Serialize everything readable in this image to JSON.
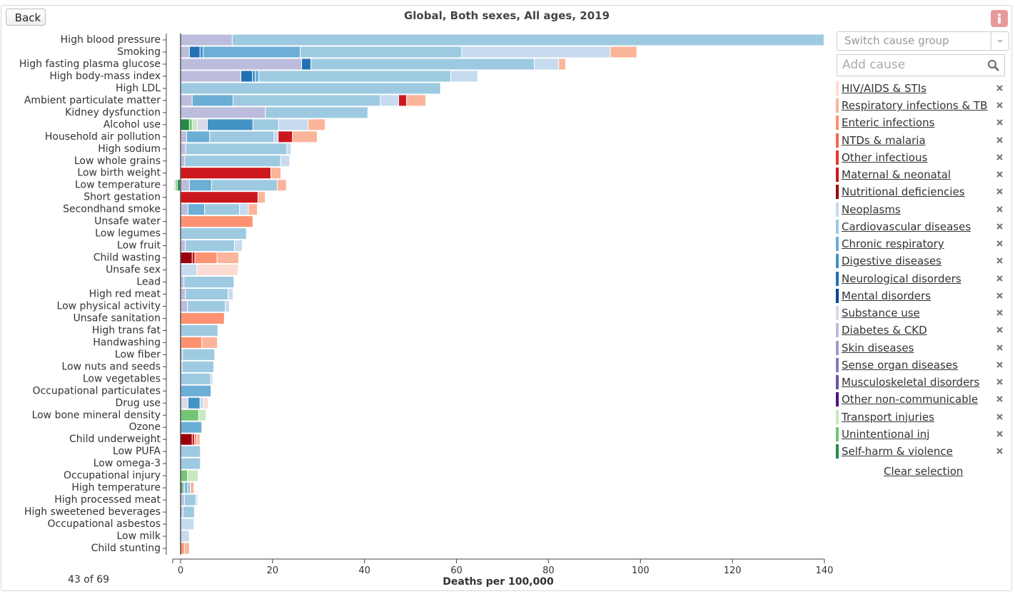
{
  "ui": {
    "back": "Back",
    "switch_placeholder": "Switch cause group",
    "add_placeholder": "Add cause",
    "clear": "Clear selection",
    "counter": "43 of 69"
  },
  "chart_data": {
    "type": "bar",
    "orientation": "horizontal",
    "stacked": true,
    "title": "Global, Both sexes, All ages, 2019",
    "x_label": "Deaths per 100,000",
    "xlim": [
      -1.7,
      140
    ],
    "xticks": [
      0,
      20,
      40,
      60,
      80,
      100,
      120,
      140
    ],
    "categories": [
      "High blood pressure",
      "Smoking",
      "High fasting plasma glucose",
      "High body-mass index",
      "High LDL",
      "Ambient particulate matter",
      "Kidney dysfunction",
      "Alcohol use",
      "Household air pollution",
      "High sodium",
      "Low whole grains",
      "Low birth weight",
      "Low temperature",
      "Short gestation",
      "Secondhand smoke",
      "Unsafe water",
      "Low legumes",
      "Low fruit",
      "Child wasting",
      "Unsafe sex",
      "Lead",
      "High red meat",
      "Low physical activity",
      "Unsafe sanitation",
      "High trans fat",
      "Handwashing",
      "Low fiber",
      "Low nuts and seeds",
      "Low vegetables",
      "Occupational particulates",
      "Drug use",
      "Low bone mineral density",
      "Ozone",
      "Child underweight",
      "Low PUFA",
      "Low omega-3",
      "Occupational injury",
      "High temperature",
      "High processed meat",
      "High sweetened beverages",
      "Occupational asbestos",
      "Low milk",
      "Child stunting"
    ],
    "series": [
      {
        "name": "HIV/AIDS & STIs",
        "color": "#fcdcd3",
        "values": [
          0,
          0,
          0,
          0,
          0,
          0,
          0,
          0,
          0,
          0,
          0,
          0,
          0,
          0,
          0,
          0,
          0,
          0,
          0,
          9.0,
          0,
          0,
          0,
          0,
          0,
          0,
          0,
          0,
          0,
          0,
          1.0,
          0,
          0,
          0,
          0,
          0,
          0,
          0,
          0,
          0,
          0,
          0,
          0
        ]
      },
      {
        "name": "Respiratory infections & TB",
        "color": "#fbb59b",
        "values": [
          0,
          5.8,
          1.5,
          0,
          0,
          4.2,
          0,
          3.7,
          5.4,
          0,
          0,
          2.2,
          2.0,
          1.6,
          2.0,
          0,
          0,
          0,
          4.7,
          0,
          0,
          0,
          0,
          0,
          0,
          3.4,
          0,
          0,
          0,
          0,
          0,
          0,
          0,
          0.7,
          0,
          0,
          0,
          0.8,
          0,
          0,
          0,
          0,
          1.1
        ]
      },
      {
        "name": "Enteric infections",
        "color": "#fc9272",
        "values": [
          0,
          0,
          0,
          0,
          0,
          0,
          0,
          0,
          0,
          0,
          0,
          0,
          0,
          0,
          0,
          15.8,
          0,
          0,
          4.8,
          0,
          0,
          0,
          0,
          9.6,
          0,
          4.7,
          0,
          0,
          0,
          0,
          0,
          0,
          0,
          0.5,
          0,
          0,
          0,
          0,
          0,
          0,
          0,
          0,
          0.9
        ]
      },
      {
        "name": "NTDs & malaria",
        "color": "#f06a4a",
        "values": [
          0,
          0,
          0,
          0,
          0,
          0,
          0,
          0,
          0,
          0,
          0,
          0,
          0,
          0,
          0,
          0,
          0,
          0,
          0,
          0,
          0,
          0,
          0,
          0,
          0,
          0,
          0,
          0,
          0,
          0,
          0,
          0,
          0,
          0,
          0,
          0,
          0,
          0,
          0,
          0,
          0,
          0,
          0
        ]
      },
      {
        "name": "Other infectious",
        "color": "#e5372f",
        "values": [
          0,
          0,
          0,
          0,
          0,
          0,
          0,
          0,
          0,
          0,
          0,
          0,
          0,
          0,
          0,
          0,
          0,
          0,
          0,
          0,
          0,
          0,
          0,
          0,
          0,
          0,
          0,
          0,
          0,
          0,
          0,
          0,
          0,
          0,
          0,
          0,
          0,
          0,
          0,
          0,
          0,
          0,
          0
        ]
      },
      {
        "name": "Maternal & neonatal",
        "color": "#cb181d",
        "values": [
          0,
          0,
          0,
          0,
          0,
          1.7,
          0,
          0,
          3.1,
          0,
          0,
          19.7,
          0,
          16.9,
          0,
          0,
          0,
          0,
          0.6,
          0,
          0,
          0,
          0,
          0,
          0,
          0,
          0,
          0,
          0,
          0,
          0,
          0,
          0,
          0.5,
          0,
          0,
          0,
          0,
          0,
          0,
          0,
          0,
          0
        ]
      },
      {
        "name": "Nutritional deficiencies",
        "color": "#99000d",
        "values": [
          0,
          0,
          0,
          0,
          0,
          0,
          0,
          0,
          0,
          0,
          0,
          0,
          0,
          0,
          0,
          0,
          0,
          0,
          2.6,
          0,
          0,
          0,
          0,
          0,
          0,
          0,
          0,
          0,
          0,
          0,
          0,
          0,
          0,
          2.6,
          0,
          0,
          0,
          0,
          0,
          0,
          0,
          0,
          0
        ]
      },
      {
        "name": "Neoplasms",
        "color": "#c6dbef",
        "values": [
          0,
          32.3,
          5.3,
          5.9,
          0,
          4.0,
          0,
          6.4,
          0.9,
          0.9,
          2.0,
          0,
          0,
          0,
          1.9,
          0,
          0,
          1.7,
          0,
          3.6,
          0,
          1.1,
          0.9,
          0,
          0,
          0,
          0,
          0,
          0.3,
          0,
          0.8,
          0,
          0,
          0,
          0,
          0,
          0,
          0,
          0.4,
          0,
          3.0,
          2.0,
          0
        ]
      },
      {
        "name": "Cardiovascular diseases",
        "color": "#9ecae1",
        "values": [
          128.7,
          35.1,
          48.6,
          41.7,
          56.6,
          32.0,
          22.3,
          5.6,
          14.0,
          22.0,
          20.8,
          0,
          14.3,
          0,
          7.6,
          0,
          14.4,
          10.7,
          0,
          0,
          10.9,
          9.3,
          8.2,
          0,
          8.2,
          0,
          7.0,
          6.9,
          6.6,
          0,
          0,
          0,
          0,
          0,
          4.4,
          4.4,
          0,
          0.6,
          2.5,
          2.5,
          0,
          0,
          0
        ]
      },
      {
        "name": "Chronic respiratory",
        "color": "#6baed6",
        "values": [
          0,
          21.1,
          0,
          0.8,
          0,
          8.9,
          0,
          0,
          5.0,
          0,
          0,
          0,
          4.8,
          0,
          3.6,
          0,
          0,
          0,
          0,
          0,
          0,
          0,
          0,
          0,
          0,
          0,
          0,
          0,
          0,
          6.7,
          0,
          0,
          4.7,
          0,
          0,
          0,
          0,
          0.6,
          0,
          0,
          0,
          0,
          0
        ]
      },
      {
        "name": "Digestive diseases",
        "color": "#4292c6",
        "values": [
          0,
          0.7,
          0,
          0.6,
          0,
          0,
          0,
          9.9,
          0,
          0,
          0,
          0,
          0,
          0,
          0,
          0,
          0,
          0,
          0,
          0,
          0,
          0,
          0,
          0,
          0,
          0,
          0,
          0,
          0,
          0,
          2.6,
          0,
          0,
          0,
          0,
          0,
          0,
          0,
          0,
          0,
          0,
          0,
          0
        ]
      },
      {
        "name": "Neurological disorders",
        "color": "#2171b5",
        "values": [
          0,
          2.3,
          2.0,
          2.5,
          0,
          0,
          0,
          0,
          0,
          0,
          0,
          0,
          0,
          0,
          0,
          0,
          0,
          0,
          0,
          0,
          0,
          0,
          0,
          0,
          0,
          0,
          0,
          0,
          0,
          0,
          0,
          0,
          0,
          0,
          0,
          0,
          0,
          0,
          0,
          0,
          0,
          0,
          0
        ]
      },
      {
        "name": "Mental disorders",
        "color": "#084594",
        "values": [
          0,
          0,
          0,
          0,
          0,
          0,
          0,
          0,
          0,
          0,
          0,
          0,
          0,
          0,
          0,
          0,
          0,
          0,
          0,
          0,
          0,
          0,
          0,
          0,
          0,
          0,
          0,
          0,
          0,
          0,
          0,
          0,
          0,
          0,
          0,
          0,
          0,
          0,
          0,
          0,
          0,
          0,
          0
        ]
      },
      {
        "name": "Substance use",
        "color": "#dadaeb",
        "values": [
          0,
          0,
          0,
          0,
          0,
          0,
          0,
          2.2,
          0,
          0,
          0,
          0,
          0,
          0,
          0,
          0,
          0,
          0,
          0,
          0,
          0,
          0,
          0,
          0,
          0,
          0,
          0,
          0,
          0,
          0,
          1.7,
          0,
          0,
          0,
          0,
          0,
          0,
          0,
          0,
          0,
          0,
          0,
          0
        ]
      },
      {
        "name": "Diabetes & CKD",
        "color": "#bcbddc",
        "values": [
          11.3,
          2.0,
          26.4,
          13.2,
          0,
          2.6,
          18.5,
          0,
          1.4,
          1.2,
          1.0,
          0,
          2.0,
          0,
          1.7,
          0,
          0,
          1.1,
          0,
          0,
          0.8,
          1.1,
          1.6,
          0,
          0,
          0,
          0.5,
          0.4,
          0,
          0,
          0,
          0,
          0,
          0,
          0,
          0,
          0,
          0.5,
          0.9,
          0.6,
          0,
          0,
          0
        ]
      },
      {
        "name": "Skin diseases",
        "color": "#9e9ac8",
        "values": [
          0,
          0,
          0,
          0,
          0,
          0,
          0,
          0,
          0,
          0,
          0,
          0,
          0,
          0,
          0,
          0,
          0,
          0,
          0,
          0,
          0,
          0,
          0,
          0,
          0,
          0,
          0,
          0,
          0,
          0,
          0,
          0,
          0,
          0,
          0,
          0,
          0,
          0,
          0,
          0,
          0,
          0,
          0
        ]
      },
      {
        "name": "Sense organ diseases",
        "color": "#807dba",
        "values": [
          0,
          0,
          0,
          0,
          0,
          0,
          0,
          0,
          0,
          0,
          0,
          0,
          0,
          0,
          0,
          0,
          0,
          0,
          0,
          0,
          0,
          0,
          0,
          0,
          0,
          0,
          0,
          0,
          0,
          0,
          0,
          0,
          0,
          0,
          0,
          0,
          0,
          0,
          0,
          0,
          0,
          0,
          0
        ]
      },
      {
        "name": "Musculoskeletal disorders",
        "color": "#6a51a3",
        "values": [
          0,
          0,
          0,
          0,
          0,
          0,
          0,
          0,
          0,
          0,
          0,
          0,
          0,
          0,
          0,
          0,
          0,
          0,
          0,
          0,
          0,
          0,
          0,
          0,
          0,
          0,
          0,
          0,
          0,
          0,
          0,
          0,
          0,
          0,
          0,
          0,
          0,
          0,
          0,
          0,
          0,
          0,
          0
        ]
      },
      {
        "name": "Other non-communicable",
        "color": "#4a1486",
        "values": [
          0,
          0,
          0,
          0,
          0,
          0,
          0,
          0,
          0,
          0,
          0,
          0,
          0,
          0,
          0,
          0,
          0,
          0,
          0,
          0,
          0,
          0,
          0,
          0,
          0,
          0,
          0,
          0,
          0,
          0,
          0,
          0,
          0,
          0,
          0,
          0,
          0,
          0,
          0,
          0,
          0,
          0,
          0
        ]
      },
      {
        "name": "Transport injuries",
        "color": "#c7e9c0",
        "values": [
          0,
          0,
          0,
          0,
          0,
          0,
          0,
          1.1,
          0,
          0,
          0,
          0,
          -0.4,
          0,
          0,
          0,
          0,
          0,
          0,
          0,
          0,
          0,
          0,
          0,
          0,
          0,
          0,
          0,
          0,
          0,
          0,
          1.6,
          0,
          0,
          0,
          0,
          2.3,
          0,
          0,
          0,
          0,
          0,
          0
        ]
      },
      {
        "name": "Unintentional inj",
        "color": "#74c476",
        "values": [
          0,
          0,
          0,
          0,
          0,
          0,
          0,
          0.6,
          0,
          0,
          0,
          0,
          -0.4,
          0,
          0,
          0,
          0,
          0,
          0,
          0,
          0,
          0,
          0,
          0,
          0,
          0,
          0,
          0,
          0,
          0,
          0,
          4.0,
          0,
          0,
          0,
          0,
          1.6,
          0.2,
          0,
          0,
          0,
          0,
          0
        ]
      },
      {
        "name": "Self-harm & violence",
        "color": "#238b45",
        "values": [
          0,
          0,
          0,
          0,
          0,
          0,
          0,
          2.0,
          0,
          0,
          0,
          0,
          -0.6,
          0,
          0,
          0,
          0,
          0,
          0,
          0,
          0,
          0,
          0,
          0,
          0,
          0,
          0,
          0,
          0,
          0,
          0,
          0,
          0,
          0,
          0,
          0,
          0,
          0.3,
          0,
          0,
          0,
          0,
          0
        ]
      }
    ]
  }
}
